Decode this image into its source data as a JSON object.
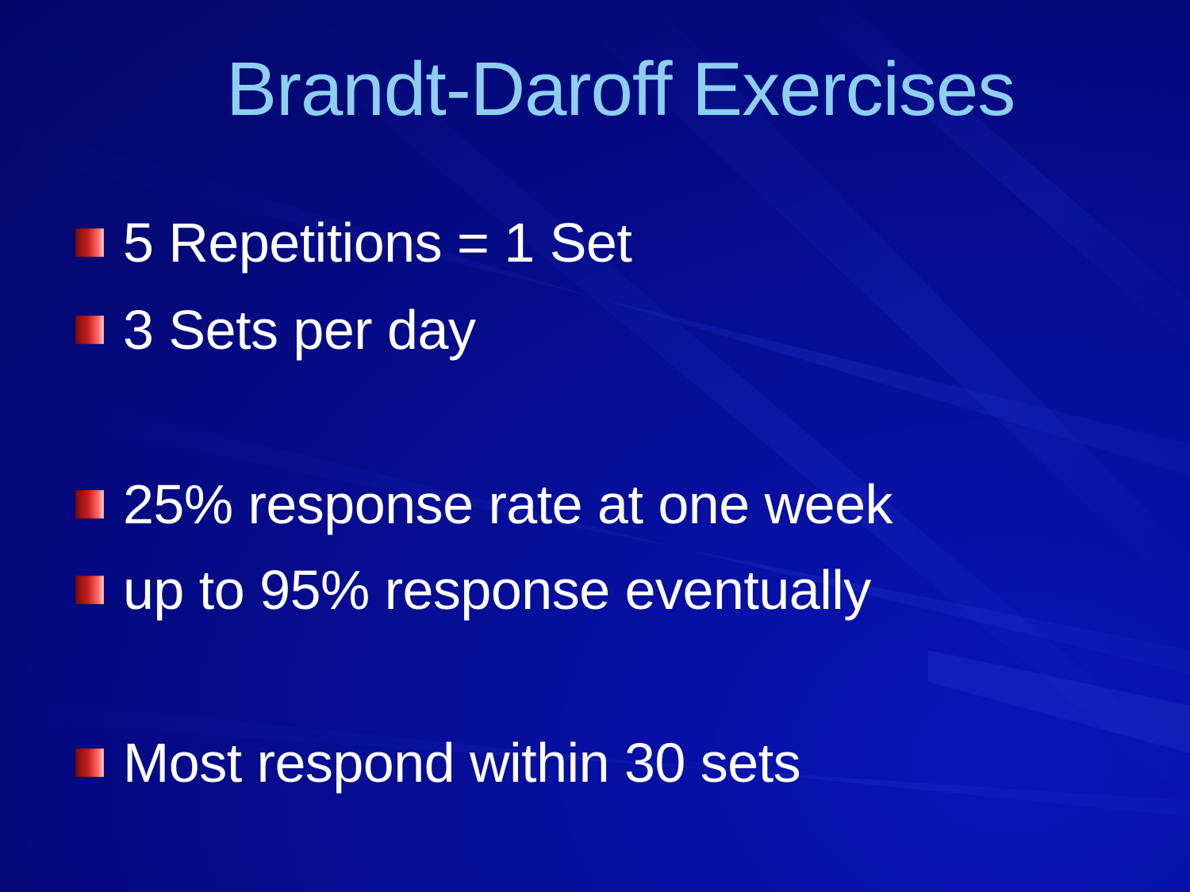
{
  "slide": {
    "title": "Brandt-Daroff Exercises",
    "colors": {
      "background": "#050b86",
      "title": "#8ecfee",
      "text": "#ffffff",
      "bullet": "#c81e1e"
    },
    "bullets": [
      {
        "text": "5 Repetitions = 1 Set",
        "icon": "red-square-bullet-icon"
      },
      {
        "text": "3 Sets per day",
        "icon": "red-square-bullet-icon"
      },
      {
        "text": "25% response rate at one week",
        "icon": "red-square-bullet-icon"
      },
      {
        "text": "up to 95% response eventually",
        "icon": "red-square-bullet-icon"
      },
      {
        "text": "Most respond within 30 sets",
        "icon": "red-square-bullet-icon"
      }
    ]
  }
}
